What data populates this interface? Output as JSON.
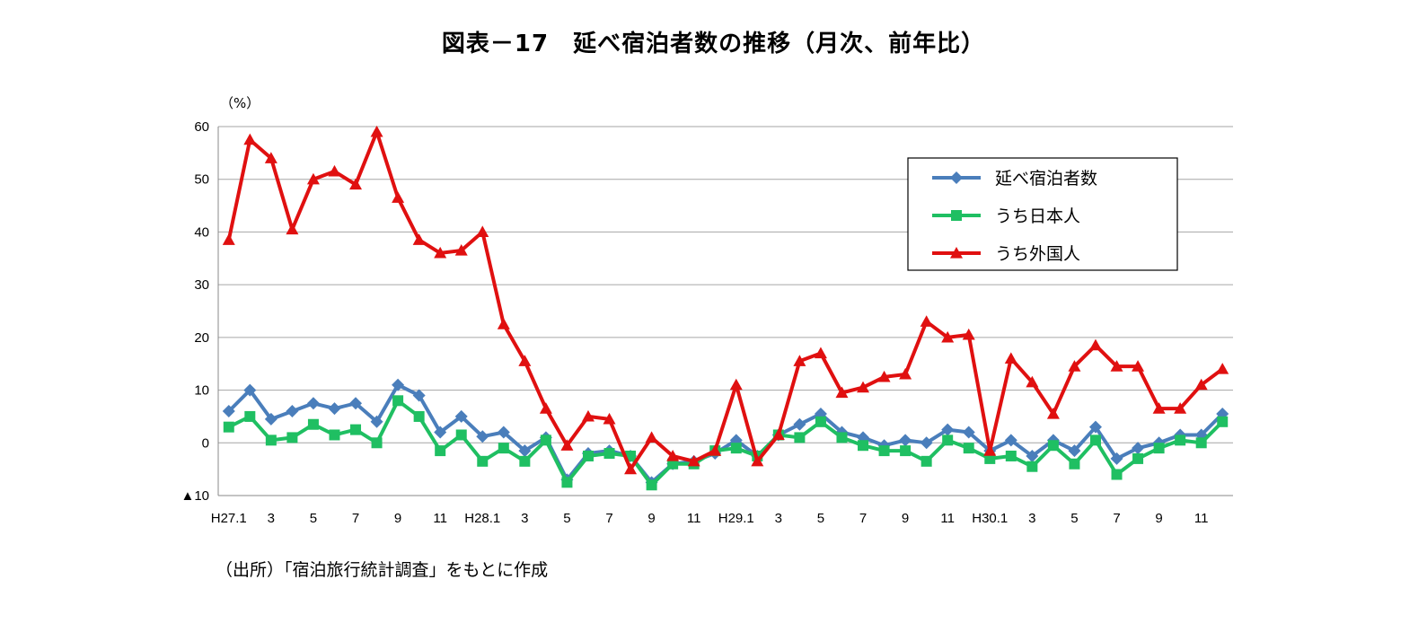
{
  "chart_data": {
    "type": "line",
    "title": "図表－17　延べ宿泊者数の推移（月次、前年比）",
    "ylabel": "（%）",
    "ylim": [
      -10,
      60
    ],
    "yticks": [
      60,
      50,
      40,
      30,
      20,
      10,
      0,
      -10
    ],
    "ytick_labels": [
      "60",
      "50",
      "40",
      "30",
      "20",
      "10",
      "0",
      "▲10"
    ],
    "grid": true,
    "legend_position": "top-right",
    "x_tick_labels": [
      "H27.1",
      "",
      "3",
      "",
      "5",
      "",
      "7",
      "",
      "9",
      "",
      "11",
      "",
      "H28.1",
      "",
      "3",
      "",
      "5",
      "",
      "7",
      "",
      "9",
      "",
      "11",
      "",
      "H29.1",
      "",
      "3",
      "",
      "5",
      "",
      "7",
      "",
      "9",
      "",
      "11",
      "",
      "H30.1",
      "",
      "3",
      "",
      "5",
      "",
      "7",
      "",
      "9",
      "",
      "11",
      ""
    ],
    "series": [
      {
        "name": "延べ宿泊者数",
        "color": "#4a7ebb",
        "marker": "diamond",
        "values": [
          6,
          10,
          4.5,
          6,
          7.5,
          6.5,
          7.5,
          4,
          11,
          9,
          2,
          5,
          1.2,
          2,
          -1.5,
          1,
          -7,
          -2,
          -1.5,
          -2.5,
          -7.5,
          -4,
          -3.5,
          -2,
          0.5,
          -2.5,
          1.5,
          3.5,
          5.5,
          2,
          1,
          -0.5,
          0.5,
          0,
          2.5,
          2,
          -1.5,
          0.5,
          -2.5,
          0.5,
          -1.5,
          3,
          -3,
          -1,
          0,
          1.5,
          1.5,
          5.5
        ]
      },
      {
        "name": "うち日本人",
        "color": "#1fbf62",
        "marker": "square",
        "values": [
          3,
          5,
          0.5,
          1,
          3.5,
          1.5,
          2.5,
          0,
          8,
          5,
          -1.5,
          1.5,
          -3.5,
          -1,
          -3.5,
          0.5,
          -7.5,
          -2.5,
          -2,
          -2.5,
          -8,
          -4,
          -4,
          -1.5,
          -1,
          -2.5,
          1.5,
          1,
          4,
          1,
          -0.5,
          -1.5,
          -1.5,
          -3.5,
          0.5,
          -1,
          -3,
          -2.5,
          -4.5,
          -0.5,
          -4,
          0.5,
          -6,
          -3,
          -1,
          0.5,
          0,
          4
        ]
      },
      {
        "name": "うち外国人",
        "color": "#e01010",
        "marker": "triangle",
        "values": [
          38.5,
          57.5,
          54,
          40.5,
          50,
          51.5,
          49,
          59,
          46.5,
          38.5,
          36,
          36.5,
          40,
          22.5,
          15.5,
          6.5,
          -0.5,
          5,
          4.5,
          -5,
          1,
          -2.5,
          -3.5,
          -1.5,
          11,
          -3.5,
          1.5,
          15.5,
          17,
          9.5,
          10.5,
          12.5,
          13,
          23,
          20,
          20.5,
          -1.5,
          16,
          11.5,
          5.5,
          14.5,
          18.5,
          14.5,
          14.5,
          6.5,
          6.5,
          11,
          14
        ]
      }
    ]
  },
  "source_note": "（出所）「宿泊旅行統計調査」をもとに作成"
}
